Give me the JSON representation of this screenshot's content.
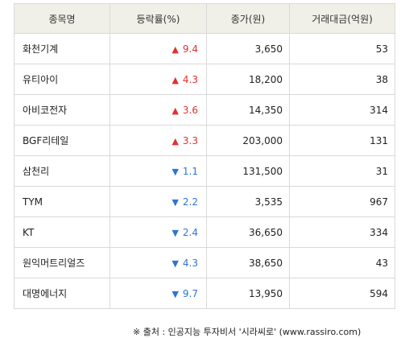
{
  "table": {
    "headers": [
      "종목명",
      "등락률(%)",
      "종가(원)",
      "거래대금(억원)"
    ],
    "rows": [
      {
        "name": "화천기계",
        "direction": "up",
        "rate": "9.4",
        "price": "3,650",
        "volume": "53"
      },
      {
        "name": "유티아이",
        "direction": "up",
        "rate": "4.3",
        "price": "18,200",
        "volume": "38"
      },
      {
        "name": "아비코전자",
        "direction": "up",
        "rate": "3.6",
        "price": "14,350",
        "volume": "314"
      },
      {
        "name": "BGF리테일",
        "direction": "up",
        "rate": "3.3",
        "price": "203,000",
        "volume": "131"
      },
      {
        "name": "삼천리",
        "direction": "down",
        "rate": "1.1",
        "price": "131,500",
        "volume": "31"
      },
      {
        "name": "TYM",
        "direction": "down",
        "rate": "2.2",
        "price": "3,535",
        "volume": "967"
      },
      {
        "name": "KT",
        "direction": "down",
        "rate": "2.4",
        "price": "36,650",
        "volume": "334"
      },
      {
        "name": "원익머트리얼즈",
        "direction": "down",
        "rate": "4.3",
        "price": "38,650",
        "volume": "43"
      },
      {
        "name": "대명에너지",
        "direction": "down",
        "rate": "9.7",
        "price": "13,950",
        "volume": "594"
      }
    ]
  },
  "icons": {
    "up": "▲",
    "down": "▼"
  },
  "colors": {
    "up": "#e0312f",
    "down": "#2f74d0",
    "header_bg": "#f0f0e8",
    "border": "#d9d9d9"
  },
  "source_text": "※ 출처 : 인공지능 투자비서 '시라씨로' (www.rassiro.com)"
}
